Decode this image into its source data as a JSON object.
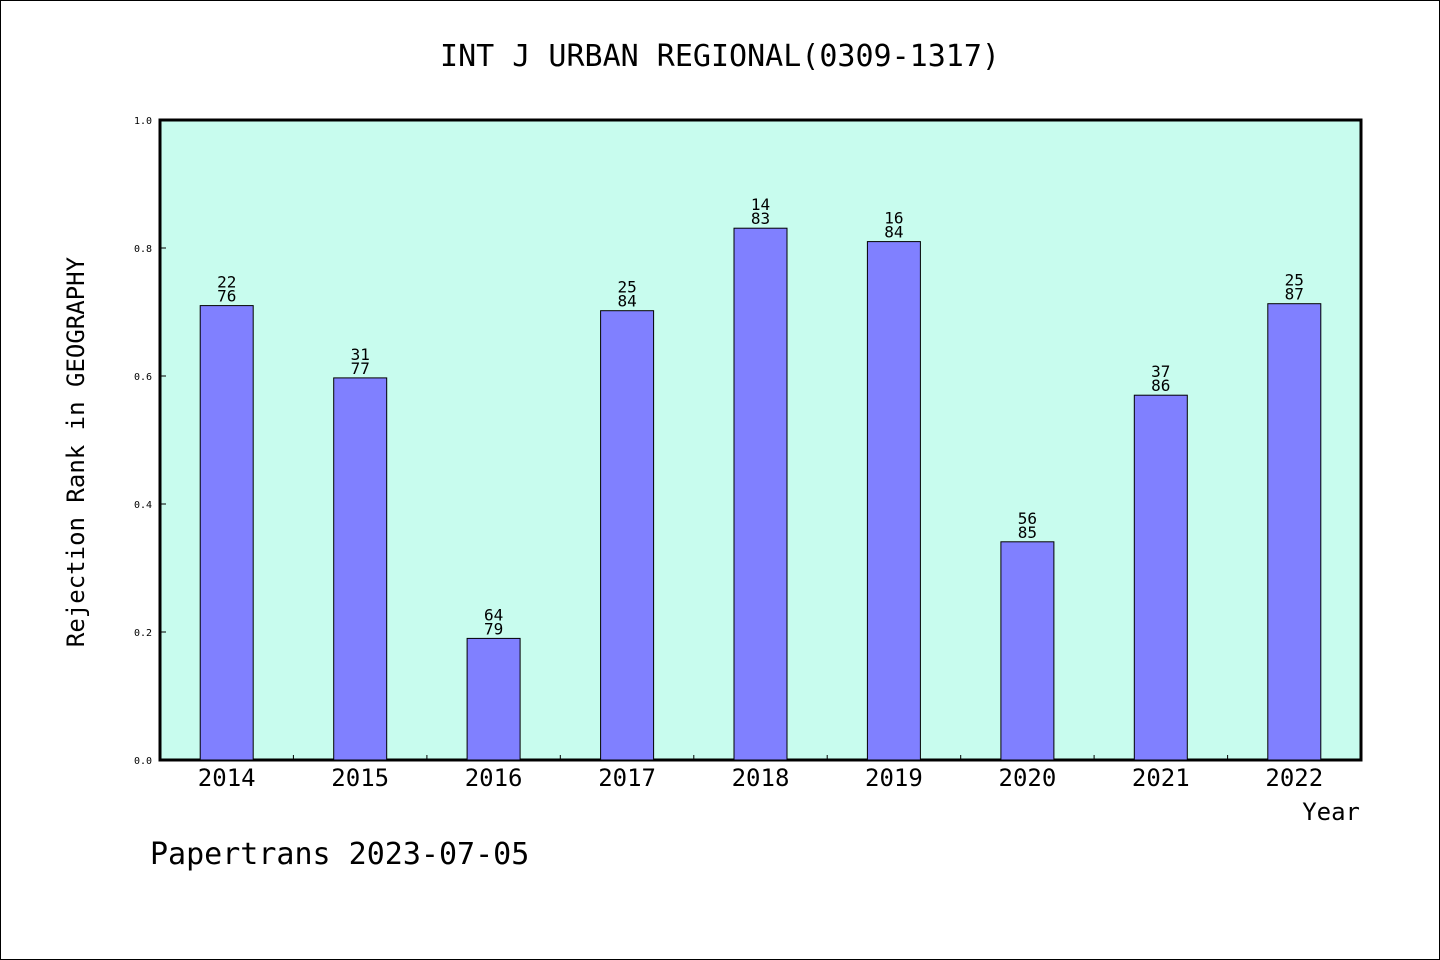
{
  "chart_data": {
    "type": "bar",
    "title": "INT J URBAN REGIONAL(0309-1317)",
    "xlabel": "Year",
    "ylabel": "Rejection Rank in GEOGRAPHY",
    "ylim": [
      0.0,
      1.0
    ],
    "yticks": [
      "0.0",
      "0.2",
      "0.4",
      "0.6",
      "0.8",
      "1.0"
    ],
    "categories": [
      "2014",
      "2015",
      "2016",
      "2017",
      "2018",
      "2019",
      "2020",
      "2021",
      "2022"
    ],
    "values": [
      0.71,
      0.597,
      0.19,
      0.702,
      0.831,
      0.81,
      0.341,
      0.57,
      0.713
    ],
    "bar_labels": [
      [
        "22",
        "76"
      ],
      [
        "31",
        "77"
      ],
      [
        "64",
        "79"
      ],
      [
        "25",
        "84"
      ],
      [
        "14",
        "83"
      ],
      [
        "16",
        "84"
      ],
      [
        "56",
        "85"
      ],
      [
        "37",
        "86"
      ],
      [
        "25",
        "87"
      ]
    ],
    "grid": false,
    "legend": "none",
    "colors": {
      "plot_background": "#c8fcee",
      "bar_fill": "#8080ff",
      "bar_stroke": "#000000"
    }
  },
  "footer": {
    "watermark": "Papertrans 2023-07-05"
  }
}
